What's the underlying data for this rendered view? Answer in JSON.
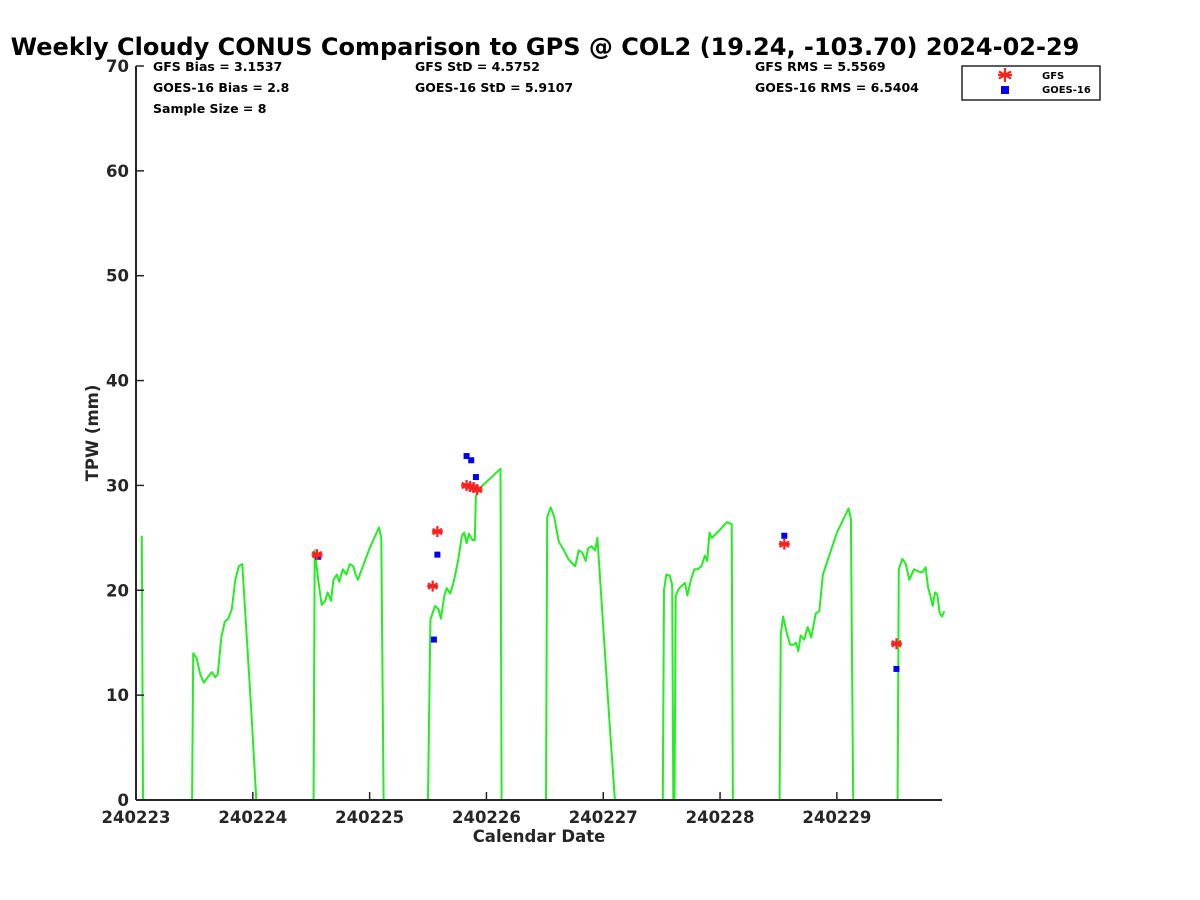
{
  "chart_data": {
    "type": "scatter",
    "title": "Weekly Cloudy CONUS Comparison to GPS @ COL2 (19.24, -103.70) 2024-02-29",
    "xlabel": "Calendar Date",
    "ylabel": "TPW (mm)",
    "xlim": [
      0,
      6.9
    ],
    "ylim": [
      0,
      70
    ],
    "x_tick_values": [
      0,
      1,
      2,
      3,
      4,
      5,
      6
    ],
    "x_tick_labels": [
      "240223",
      "240224",
      "240225",
      "240226",
      "240227",
      "240228",
      "240229"
    ],
    "y_ticks": [
      0,
      10,
      20,
      30,
      40,
      50,
      60,
      70
    ],
    "grid": false,
    "legend_position": "top-right",
    "stats": [
      "GFS Bias = 3.1537",
      "GOES-16 Bias = 2.8",
      "Sample Size = 8",
      "GFS StD = 4.5752",
      "GOES-16 StD = 5.9107",
      "GFS RMS = 5.5569",
      "GOES-16 RMS = 6.5404"
    ],
    "series": [
      {
        "name": "",
        "kind": "line",
        "color": "#22ee22",
        "segments": [
          [
            [
              0.05,
              25.2
            ],
            [
              0.06,
              0
            ]
          ],
          [
            [
              0.48,
              0
            ],
            [
              0.49,
              14.0
            ],
            [
              0.52,
              13.5
            ],
            [
              0.55,
              12.0
            ],
            [
              0.58,
              11.2
            ],
            [
              0.62,
              11.8
            ],
            [
              0.65,
              12.2
            ],
            [
              0.68,
              11.7
            ],
            [
              0.7,
              12.0
            ],
            [
              0.73,
              15.5
            ],
            [
              0.76,
              17.0
            ],
            [
              0.79,
              17.3
            ],
            [
              0.82,
              18.2
            ],
            [
              0.85,
              21.0
            ],
            [
              0.88,
              22.3
            ],
            [
              0.91,
              22.5
            ],
            [
              0.99,
              8.0
            ],
            [
              1.03,
              0
            ]
          ],
          [
            [
              1.52,
              0
            ],
            [
              1.53,
              23.8
            ],
            [
              1.56,
              21.0
            ],
            [
              1.59,
              18.6
            ],
            [
              1.62,
              19.0
            ],
            [
              1.64,
              19.8
            ],
            [
              1.67,
              19.0
            ],
            [
              1.69,
              21.0
            ],
            [
              1.72,
              21.5
            ],
            [
              1.74,
              20.8
            ],
            [
              1.77,
              22.0
            ],
            [
              1.8,
              21.5
            ],
            [
              1.83,
              22.5
            ],
            [
              1.86,
              22.3
            ],
            [
              1.88,
              21.5
            ],
            [
              1.9,
              21.0
            ],
            [
              2.0,
              24.0
            ],
            [
              2.08,
              26.0
            ],
            [
              2.1,
              25.0
            ],
            [
              2.12,
              0
            ]
          ],
          [
            [
              2.5,
              0
            ],
            [
              2.52,
              17.2
            ],
            [
              2.56,
              18.5
            ],
            [
              2.59,
              18.2
            ],
            [
              2.61,
              17.3
            ],
            [
              2.64,
              19.5
            ],
            [
              2.66,
              20.2
            ],
            [
              2.69,
              19.7
            ],
            [
              2.72,
              20.8
            ],
            [
              2.76,
              23.0
            ],
            [
              2.79,
              25.2
            ],
            [
              2.81,
              25.5
            ],
            [
              2.83,
              24.5
            ],
            [
              2.85,
              25.4
            ],
            [
              2.88,
              24.8
            ],
            [
              2.9,
              24.8
            ],
            [
              2.91,
              29.0
            ],
            [
              2.95,
              29.8
            ],
            [
              3.12,
              31.6
            ],
            [
              3.13,
              0
            ]
          ],
          [
            [
              3.51,
              0
            ],
            [
              3.52,
              27.0
            ],
            [
              3.55,
              27.9
            ],
            [
              3.58,
              27.0
            ],
            [
              3.62,
              24.6
            ],
            [
              3.66,
              23.9
            ],
            [
              3.7,
              23.0
            ],
            [
              3.74,
              22.5
            ],
            [
              3.76,
              22.3
            ],
            [
              3.79,
              23.8
            ],
            [
              3.82,
              23.6
            ],
            [
              3.85,
              22.8
            ],
            [
              3.87,
              24.0
            ],
            [
              3.9,
              24.2
            ],
            [
              3.93,
              23.8
            ],
            [
              3.95,
              25.0
            ],
            [
              4.05,
              8.0
            ],
            [
              4.1,
              0
            ]
          ],
          [
            [
              4.51,
              0
            ],
            [
              4.52,
              20.0
            ],
            [
              4.54,
              21.5
            ],
            [
              4.57,
              21.4
            ],
            [
              4.59,
              20.5
            ],
            [
              4.6,
              0
            ]
          ],
          [
            [
              4.61,
              0
            ],
            [
              4.62,
              19.5
            ],
            [
              4.65,
              20.2
            ],
            [
              4.68,
              20.5
            ],
            [
              4.7,
              20.7
            ],
            [
              4.72,
              19.5
            ],
            [
              4.75,
              21.0
            ],
            [
              4.78,
              22.0
            ],
            [
              4.81,
              22.0
            ],
            [
              4.84,
              22.3
            ],
            [
              4.87,
              23.3
            ],
            [
              4.89,
              22.8
            ],
            [
              4.91,
              25.5
            ],
            [
              4.93,
              25.0
            ],
            [
              5.0,
              25.8
            ],
            [
              5.06,
              26.5
            ],
            [
              5.1,
              26.3
            ],
            [
              5.11,
              0
            ]
          ],
          [
            [
              5.51,
              0
            ],
            [
              5.52,
              15.8
            ],
            [
              5.54,
              17.5
            ],
            [
              5.57,
              16.0
            ],
            [
              5.6,
              14.8
            ],
            [
              5.63,
              14.8
            ],
            [
              5.65,
              15.0
            ],
            [
              5.67,
              14.2
            ],
            [
              5.69,
              15.7
            ],
            [
              5.72,
              15.3
            ],
            [
              5.75,
              16.5
            ],
            [
              5.78,
              15.5
            ],
            [
              5.82,
              17.8
            ],
            [
              5.85,
              18.0
            ],
            [
              5.88,
              21.5
            ],
            [
              6.0,
              25.5
            ],
            [
              6.1,
              27.8
            ],
            [
              6.12,
              26.8
            ],
            [
              6.14,
              0
            ]
          ],
          [
            [
              6.52,
              0
            ],
            [
              6.53,
              22.0
            ],
            [
              6.56,
              23.0
            ],
            [
              6.59,
              22.5
            ],
            [
              6.62,
              21.0
            ],
            [
              6.66,
              22.0
            ],
            [
              6.7,
              21.8
            ],
            [
              6.73,
              21.7
            ],
            [
              6.76,
              22.2
            ],
            [
              6.78,
              20.3
            ],
            [
              6.8,
              19.5
            ],
            [
              6.82,
              18.5
            ],
            [
              6.84,
              19.8
            ],
            [
              6.86,
              19.6
            ],
            [
              6.88,
              17.8
            ],
            [
              6.9,
              17.5
            ],
            [
              6.92,
              18.0
            ]
          ]
        ]
      },
      {
        "name": "GFS",
        "kind": "scatter",
        "marker": "asterisk",
        "color": "#ff2020",
        "points": [
          [
            1.55,
            23.4
          ],
          [
            2.54,
            20.4
          ],
          [
            2.58,
            25.6
          ],
          [
            2.83,
            30.0
          ],
          [
            2.86,
            29.9
          ],
          [
            2.89,
            29.8
          ],
          [
            2.92,
            29.6
          ],
          [
            5.55,
            24.4
          ],
          [
            6.51,
            14.9
          ]
        ]
      },
      {
        "name": "GOES-16",
        "kind": "scatter",
        "marker": "square",
        "color": "#0000ee",
        "points": [
          [
            1.56,
            23.2
          ],
          [
            2.55,
            15.3
          ],
          [
            2.58,
            23.4
          ],
          [
            2.83,
            32.8
          ],
          [
            2.87,
            32.4
          ],
          [
            2.91,
            30.8
          ],
          [
            5.55,
            25.2
          ],
          [
            6.51,
            12.5
          ]
        ]
      }
    ]
  }
}
